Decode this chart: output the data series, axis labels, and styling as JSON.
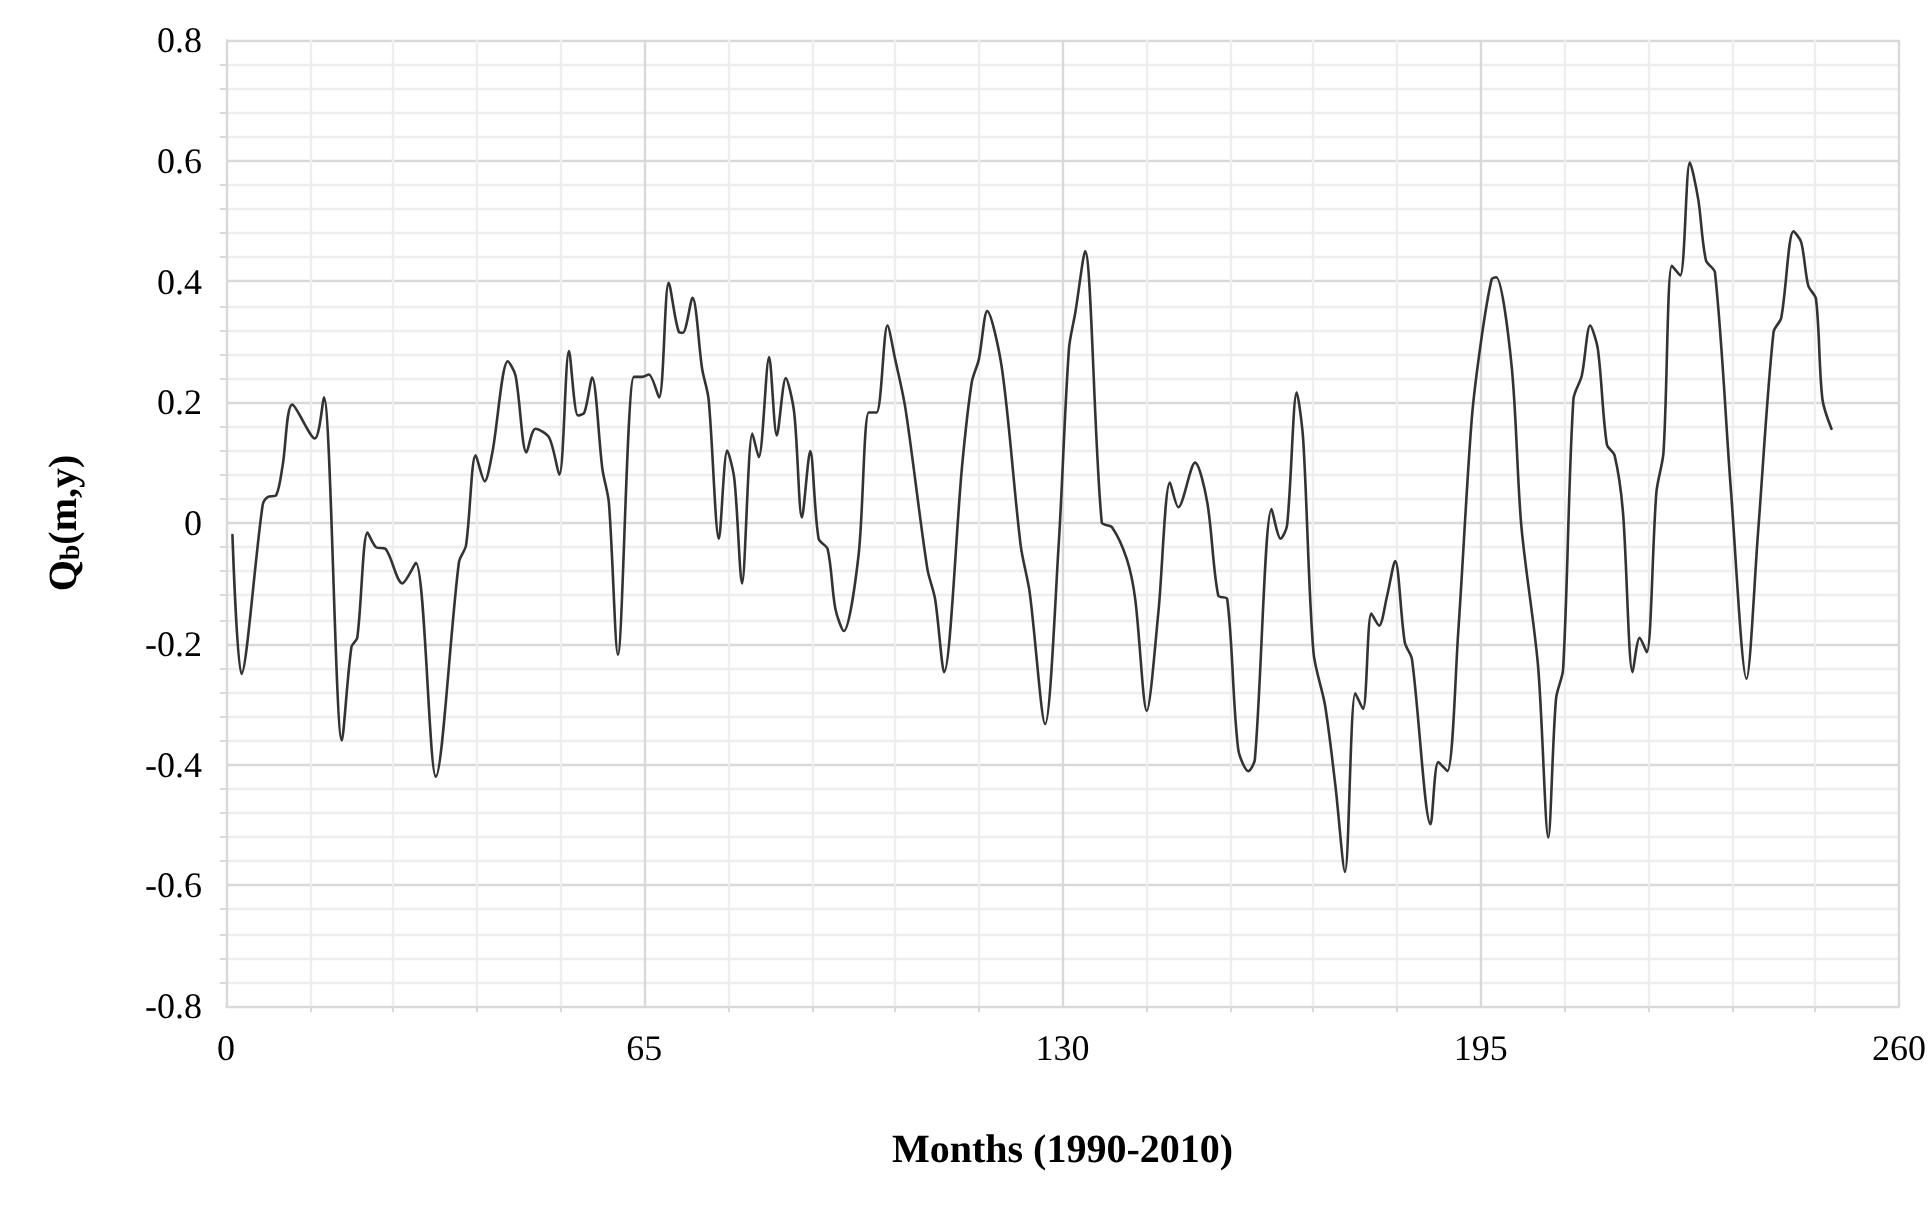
{
  "chart_data": {
    "type": "line",
    "xlabel": "Months (1990-2010)",
    "ylabel": "Q$_{b}$(m,y)",
    "x": [
      1,
      2.4,
      5.7,
      6.5,
      7.8,
      8.8,
      10.3,
      13.8,
      15.2,
      18,
      19.5,
      20.4,
      22,
      23.3,
      24.8,
      27.4,
      29.5,
      32.6,
      36.2,
      37.3,
      38.8,
      40.2,
      41.4,
      43.8,
      45,
      46.7,
      48.1,
      50.2,
      51.8,
      53.3,
      54.7,
      55.7,
      56.9,
      58.5,
      59.5,
      60.9,
      63.4,
      64.7,
      65.7,
      67.3,
      68.8,
      70.4,
      71,
      72.5,
      74,
      75,
      76.6,
      77.9,
      79,
      80.2,
      81.8,
      82.8,
      84.4,
      85.6,
      87,
      88.3,
      89.5,
      90.8,
      92.1,
      93.5,
      94.7,
      96,
      98.3,
      99.9,
      101.1,
      102.8,
      104,
      105.6,
      109,
      110.2,
      111.6,
      114.4,
      115.9,
      117,
      118.3,
      120.6,
      123.5,
      124.9,
      127.3,
      129.4,
      131,
      132,
      133.5,
      136.1,
      137.7,
      140,
      141.3,
      143.1,
      144.9,
      146.7,
      148,
      150.6,
      152.5,
      154.2,
      155.6,
      157.3,
      158.9,
      159.9,
      162.5,
      163.9,
      164.9,
      166.4,
      167.4,
      169,
      170.8,
      172.4,
      173.9,
      175.5,
      176.7,
      178,
      179.2,
      180.4,
      181.7,
      183.2,
      184.3,
      187.2,
      188.4,
      189.8,
      191.5,
      193.6,
      195.1,
      196.7,
      197.4,
      199.8,
      201.3,
      203.9,
      205.5,
      206.7,
      207.8,
      209.4,
      210.7,
      212,
      213.2,
      214.6,
      215.8,
      217.1,
      218.6,
      219.7,
      220.8,
      222.3,
      223.4,
      224.7,
      226,
      227.5,
      228.8,
      230,
      231.4,
      233.9,
      236.3,
      238.1,
      240.5,
      241.7,
      243.6,
      244.8,
      245.9,
      247.1,
      248.1,
      249.5
    ],
    "series": [
      {
        "color": "#333333",
        "values": [
          -0.02,
          -0.25,
          0.03,
          0.043,
          0.046,
          0.095,
          0.196,
          0.14,
          0.208,
          -0.36,
          -0.205,
          -0.19,
          -0.016,
          -0.04,
          -0.043,
          -0.1,
          -0.066,
          -0.42,
          -0.065,
          -0.037,
          0.112,
          0.069,
          0.117,
          0.268,
          0.244,
          0.117,
          0.156,
          0.142,
          0.08,
          0.285,
          0.178,
          0.183,
          0.241,
          0.089,
          0.034,
          -0.218,
          0.242,
          0.242,
          0.246,
          0.208,
          0.398,
          0.316,
          0.315,
          0.373,
          0.255,
          0.205,
          -0.026,
          0.12,
          0.073,
          -0.1,
          0.148,
          0.109,
          0.275,
          0.145,
          0.24,
          0.183,
          0.009,
          0.119,
          -0.026,
          -0.043,
          -0.142,
          -0.179,
          -0.054,
          0.183,
          0.183,
          0.327,
          0.271,
          0.189,
          -0.076,
          -0.126,
          -0.247,
          0.095,
          0.233,
          0.271,
          0.351,
          0.255,
          -0.037,
          -0.115,
          -0.333,
          -0.037,
          0.288,
          0.349,
          0.45,
          0.001,
          -0.007,
          -0.06,
          -0.126,
          -0.311,
          -0.148,
          0.067,
          0.026,
          0.1,
          0.034,
          -0.12,
          -0.126,
          -0.374,
          -0.411,
          -0.391,
          0.023,
          -0.026,
          -0.004,
          0.216,
          0.139,
          -0.214,
          -0.302,
          -0.434,
          -0.578,
          -0.282,
          -0.308,
          -0.15,
          -0.17,
          -0.123,
          -0.063,
          -0.198,
          -0.225,
          -0.499,
          -0.396,
          -0.411,
          -0.181,
          0.172,
          0.305,
          0.404,
          0.407,
          0.26,
          -0.004,
          -0.236,
          -0.521,
          -0.291,
          -0.242,
          0.205,
          0.244,
          0.327,
          0.288,
          0.13,
          0.112,
          0.018,
          -0.247,
          -0.19,
          -0.214,
          0.051,
          0.117,
          0.426,
          0.41,
          0.597,
          0.536,
          0.435,
          0.415,
          0.051,
          -0.258,
          -0.015,
          0.316,
          0.34,
          0.483,
          0.465,
          0.393,
          0.371,
          0.205,
          0.156
        ]
      }
    ],
    "xlim": [
      0,
      260
    ],
    "xticks": [
      0,
      65,
      130,
      195,
      260
    ],
    "ylim": [
      -0.8,
      0.8
    ],
    "yticks": [
      -0.8,
      -0.6,
      -0.4,
      -0.2,
      0,
      0.2,
      0.4,
      0.6,
      0.8
    ],
    "grid": true,
    "marker": "none",
    "line_style": "solid"
  }
}
